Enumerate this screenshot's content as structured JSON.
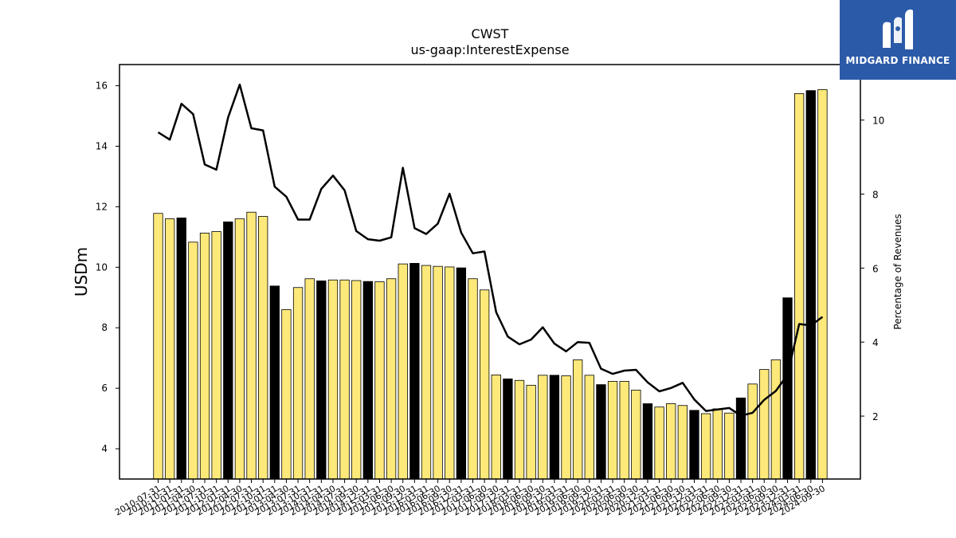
{
  "chart_data": {
    "type": "bar",
    "title": "CWST",
    "subtitle": "us-gaap:InterestExpense",
    "ylabel": "USDm",
    "y2label": "Percentage of Revenues",
    "ylim": [
      3,
      16.7
    ],
    "y2lim": [
      0.3,
      11.5
    ],
    "yticks": [
      4,
      6,
      8,
      10,
      12,
      14,
      16
    ],
    "y2ticks": [
      2,
      4,
      6,
      8,
      10
    ],
    "bar_colors": {
      "quarter": "#fde97a",
      "fiscal_year": "#000000"
    },
    "line_color": "#000000",
    "categories": [
      "2010-07-31",
      "2010-10-31",
      "2011-01-31",
      "2011-04-30",
      "2011-07-31",
      "2011-10-31",
      "2012-01-31",
      "2012-04-30",
      "2012-07-31",
      "2012-10-31",
      "2013-01-31",
      "2013-04-30",
      "2013-07-31",
      "2013-10-31",
      "2014-01-31",
      "2014-04-30",
      "2014-07-31",
      "2014-09-30",
      "2014-12-31",
      "2015-03-31",
      "2015-06-30",
      "2015-09-30",
      "2015-12-31",
      "2016-03-31",
      "2016-06-30",
      "2016-09-30",
      "2016-12-31",
      "2017-03-31",
      "2017-06-30",
      "2017-09-30",
      "2017-12-31",
      "2018-03-31",
      "2018-06-30",
      "2018-09-30",
      "2018-12-31",
      "2019-03-31",
      "2019-06-30",
      "2019-09-30",
      "2019-12-31",
      "2020-03-31",
      "2020-06-30",
      "2020-09-30",
      "2020-12-31",
      "2021-03-31",
      "2021-06-30",
      "2021-09-30",
      "2021-12-31",
      "2022-03-31",
      "2022-06-30",
      "2022-09-30",
      "2022-12-31",
      "2023-03-31",
      "2023-06-30",
      "2023-09-30",
      "2023-12-31",
      "2024-03-31",
      "2024-06-30",
      "2024-09-30"
    ],
    "visible_xtick_labels": [
      "2010-07-31",
      "2010-10-31",
      "2011-01-31",
      "2011-04-30",
      "2011-07-31",
      "2011-10-31",
      "2012-01-31",
      "2012-04-30",
      "2012-07-31",
      "2012-10-31",
      "2013-01-31",
      "2013-04-30",
      "2013-07-31",
      "2013-10-31",
      "2014-01-31",
      "2014-04-30",
      "2014-07-31",
      "2014-09-30",
      "2014-12-31",
      "2015-03-31",
      "2015-06-30",
      "2015-09-30",
      "2015-12-31",
      "2016-03-31",
      "2016-06-30",
      "2016-09-30",
      "2016-12-31",
      "2017-03-31",
      "2017-06-30",
      "2017-09-30",
      "2017-12-31",
      "2018-03-31",
      "2018-06-30",
      "2018-09-30",
      "2018-12-31",
      "2019-03-31",
      "2019-06-30",
      "2019-09-30",
      "2019-12-31",
      "2020-03-31",
      "2020-06-30",
      "2020-09-30",
      "2020-12-31",
      "2021-03-31",
      "2021-06-30",
      "2021-09-30",
      "2021-12-31",
      "2022-03-31",
      "2022-06-30",
      "2022-09-30",
      "2022-12-31",
      "2023-03-31",
      "2023-06-30",
      "2023-09-30",
      "2023-12-31",
      "2024-03-31",
      "2024-06-30",
      "2024-09-30"
    ],
    "series": [
      {
        "type": "bar",
        "axis": "left",
        "values": [
          11.78,
          11.6,
          11.63,
          10.83,
          11.13,
          11.18,
          11.5,
          11.6,
          11.82,
          11.68,
          9.38,
          8.6,
          9.33,
          9.62,
          9.55,
          9.58,
          9.58,
          9.56,
          9.53,
          9.52,
          9.62,
          10.11,
          10.13,
          10.06,
          10.03,
          10.01,
          9.98,
          9.62,
          9.25,
          6.44,
          6.31,
          6.26,
          6.1,
          6.43,
          6.43,
          6.41,
          6.94,
          6.43,
          6.12,
          6.23,
          6.23,
          5.94,
          5.49,
          5.38,
          5.49,
          5.43,
          5.27,
          5.16,
          5.32,
          5.18,
          5.68,
          6.14,
          6.62,
          6.94,
          8.99,
          15.74,
          15.84,
          15.87
        ],
        "fiscal_year": [
          false,
          false,
          true,
          false,
          false,
          false,
          true,
          false,
          false,
          false,
          true,
          false,
          false,
          false,
          true,
          false,
          false,
          false,
          true,
          false,
          false,
          false,
          true,
          false,
          false,
          false,
          true,
          false,
          false,
          false,
          true,
          false,
          false,
          false,
          true,
          false,
          false,
          false,
          true,
          false,
          false,
          false,
          true,
          false,
          false,
          false,
          true,
          false,
          false,
          false,
          true,
          false,
          false,
          false,
          true,
          false,
          true,
          false
        ]
      },
      {
        "type": "line",
        "axis": "right",
        "values": [
          9.67,
          9.47,
          10.44,
          10.16,
          8.8,
          8.66,
          10.07,
          10.96,
          9.78,
          9.72,
          8.2,
          7.93,
          7.31,
          7.31,
          8.14,
          8.5,
          8.1,
          7.0,
          6.78,
          6.74,
          6.83,
          8.71,
          7.08,
          6.92,
          7.2,
          8.01,
          6.96,
          6.4,
          6.45,
          4.81,
          4.15,
          3.94,
          4.07,
          4.4,
          3.96,
          3.75,
          4.0,
          3.98,
          3.28,
          3.14,
          3.23,
          3.25,
          2.91,
          2.67,
          2.76,
          2.9,
          2.45,
          2.14,
          2.18,
          2.22,
          2.01,
          2.09,
          2.44,
          2.68,
          3.12,
          4.49,
          4.45,
          4.68
        ]
      }
    ]
  },
  "logo": {
    "name": "MIDGARD FINANCE",
    "icon": "midgard-logo-mark-icon"
  }
}
